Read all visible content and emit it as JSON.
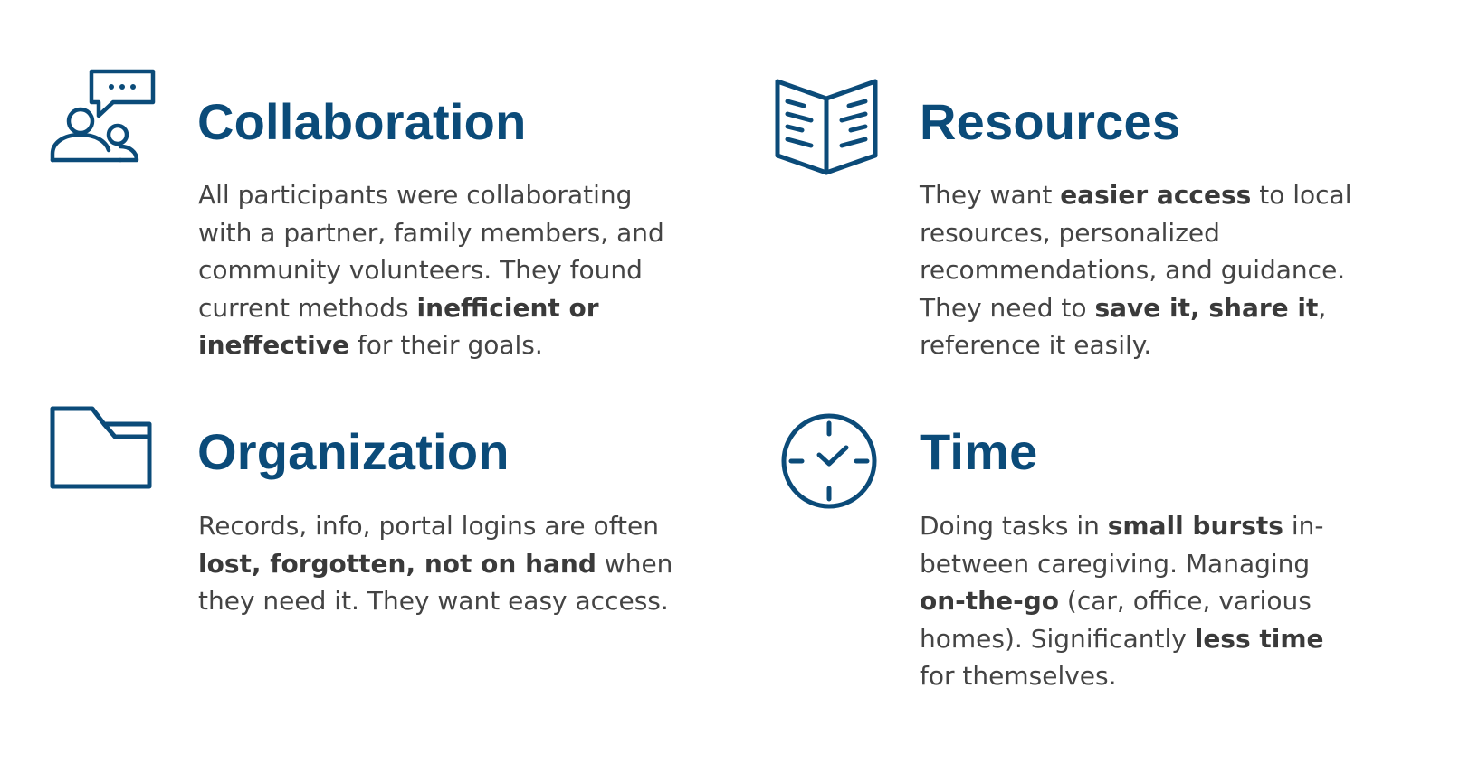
{
  "icon_color": "#0b4b79",
  "text_color": "#444444",
  "cards": {
    "collaboration": {
      "icon": "chat-people-icon",
      "title": "Collaboration",
      "lines": [
        [
          {
            "t": "All participants were collaborating",
            "b": false
          }
        ],
        [
          {
            "t": "with a partner, family members, and",
            "b": false
          }
        ],
        [
          {
            "t": "community volunteers. They found",
            "b": false
          }
        ],
        [
          {
            "t": "current methods ",
            "b": false
          },
          {
            "t": "inefficient or",
            "b": true
          }
        ],
        [
          {
            "t": "ineffective",
            "b": true
          },
          {
            "t": " for their goals.",
            "b": false
          }
        ]
      ]
    },
    "resources": {
      "icon": "open-book-icon",
      "title": "Resources",
      "lines": [
        [
          {
            "t": "They want ",
            "b": false
          },
          {
            "t": "easier access",
            "b": true
          },
          {
            "t": " to local",
            "b": false
          }
        ],
        [
          {
            "t": "resources, personalized",
            "b": false
          }
        ],
        [
          {
            "t": "recommendations, and guidance.",
            "b": false
          }
        ],
        [
          {
            "t": "They need to ",
            "b": false
          },
          {
            "t": "save it, share it",
            "b": true
          },
          {
            "t": ",",
            "b": false
          }
        ],
        [
          {
            "t": "reference it easily.",
            "b": false
          }
        ]
      ]
    },
    "organization": {
      "icon": "folder-icon",
      "title": "Organization",
      "lines": [
        [
          {
            "t": "Records, info, portal logins are often",
            "b": false
          }
        ],
        [
          {
            "t": "lost, forgotten, not on hand",
            "b": true
          },
          {
            "t": " when",
            "b": false
          }
        ],
        [
          {
            "t": "they need it. They want easy access.",
            "b": false
          }
        ]
      ]
    },
    "time": {
      "icon": "clock-icon",
      "title": "Time",
      "lines": [
        [
          {
            "t": "Doing tasks in ",
            "b": false
          },
          {
            "t": "small bursts",
            "b": true
          },
          {
            "t": " in-",
            "b": false
          }
        ],
        [
          {
            "t": "between caregiving. Managing",
            "b": false
          }
        ],
        [
          {
            "t": "on-the-go",
            "b": true
          },
          {
            "t": " (car, office, various",
            "b": false
          }
        ],
        [
          {
            "t": "homes). Significantly ",
            "b": false
          },
          {
            "t": "less time",
            "b": true
          }
        ],
        [
          {
            "t": "for themselves.",
            "b": false
          }
        ]
      ]
    }
  }
}
